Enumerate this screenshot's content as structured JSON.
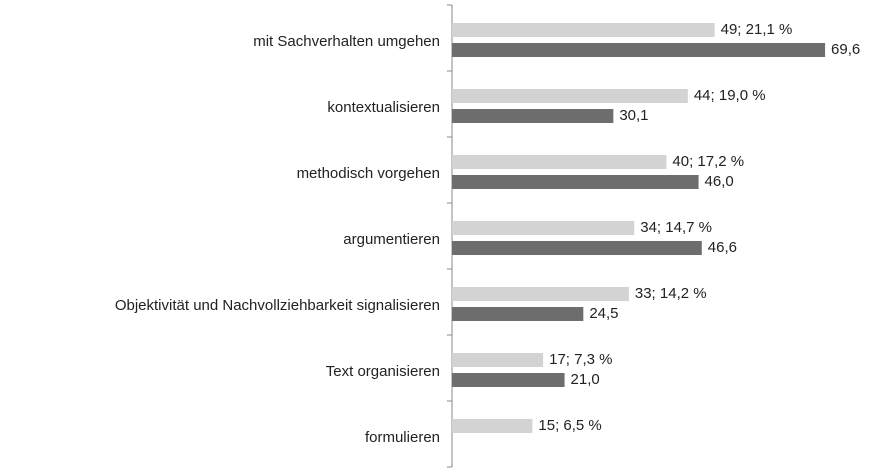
{
  "chart_data": {
    "type": "bar",
    "orientation": "horizontal",
    "categories": [
      "mit Sachverhalten umgehen",
      "kontextualisieren",
      "methodisch vorgehen",
      "argumentieren",
      "Objektivität und Nachvollziehbarkeit signalisieren",
      "Text organisieren",
      "formulieren"
    ],
    "series": [
      {
        "color": "#d3d3d3",
        "values": [
          49,
          44,
          40,
          34,
          33,
          17,
          15
        ],
        "value_labels": [
          "49; 21,1 %",
          "44; 19,0 %",
          "40; 17,2 %",
          "34; 14,7 %",
          "33; 14,2 %",
          "17; 7,3 %",
          "15; 6,5 %"
        ]
      },
      {
        "color": "#6d6d6d",
        "values": [
          69.6,
          30.1,
          46.0,
          46.6,
          24.5,
          21.0,
          null
        ],
        "value_labels": [
          "69,6",
          "30,1",
          "46,0",
          "46,6",
          "24,5",
          "21,0",
          null
        ]
      }
    ]
  }
}
